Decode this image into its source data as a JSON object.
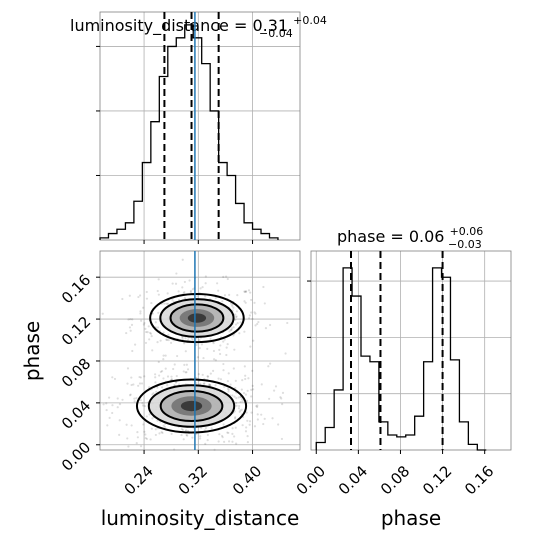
{
  "chart_data": {
    "type": "corner",
    "parameters": [
      "luminosity_distance",
      "phase"
    ],
    "truth": {
      "luminosity_distance": 0.315
    },
    "panels": [
      {
        "id": "hist-luminosity-distance",
        "type": "histogram",
        "title": "luminosity_distance = 0.31",
        "title_sup": "+0.04",
        "title_sub": "−0.04",
        "xlim": [
          0.175,
          0.47
        ],
        "ylim": [
          0,
          1.06
        ],
        "bin_edges": [
          0.175,
          0.1875,
          0.2,
          0.2125,
          0.225,
          0.2375,
          0.25,
          0.2625,
          0.275,
          0.2875,
          0.3,
          0.3125,
          0.325,
          0.3375,
          0.35,
          0.3625,
          0.375,
          0.3875,
          0.4,
          0.4125,
          0.425,
          0.4375
        ],
        "counts": [
          0.01,
          0.03,
          0.05,
          0.08,
          0.18,
          0.36,
          0.55,
          0.76,
          0.9,
          0.94,
          1.0,
          0.94,
          0.82,
          0.6,
          0.36,
          0.3,
          0.17,
          0.08,
          0.05,
          0.03,
          0.01
        ],
        "quantiles": [
          0.27,
          0.31,
          0.35
        ],
        "xticks": [
          0.24,
          0.32,
          0.4
        ],
        "yticks": [
          0.3,
          0.6,
          0.9
        ],
        "grid": true
      },
      {
        "id": "contour-phase-vs-luminosity-distance",
        "type": "2d-density",
        "xlabel": "luminosity_distance",
        "ylabel": "phase",
        "xlim": [
          0.175,
          0.47
        ],
        "ylim": [
          -0.005,
          0.185
        ],
        "xticks": [
          "0.24",
          "0.32",
          "0.40"
        ],
        "yticks": [
          "0.00",
          "0.04",
          "0.08",
          "0.12",
          "0.16"
        ],
        "xtick_values": [
          0.24,
          0.32,
          0.4
        ],
        "ytick_values": [
          0.0,
          0.04,
          0.08,
          0.12,
          0.16
        ],
        "modes": [
          {
            "x": 0.318,
            "y": 0.121,
            "sx": 0.03,
            "sy": 0.01,
            "weight": 0.43
          },
          {
            "x": 0.31,
            "y": 0.037,
            "sx": 0.035,
            "sy": 0.011,
            "weight": 0.57
          }
        ],
        "grid": true
      },
      {
        "id": "hist-phase",
        "type": "histogram",
        "title": "phase = 0.06",
        "title_sup": "+0.06",
        "title_sub": "−0.03",
        "xlabel": "phase",
        "xlim": [
          -0.005,
          0.185
        ],
        "ylim": [
          0,
          1.06
        ],
        "bin_edges": [
          0.0,
          0.0085,
          0.017,
          0.0255,
          0.034,
          0.0425,
          0.051,
          0.0595,
          0.068,
          0.0765,
          0.085,
          0.0935,
          0.102,
          0.1105,
          0.119,
          0.1275,
          0.136,
          0.1445,
          0.153,
          0.1615
        ],
        "counts": [
          0.04,
          0.12,
          0.32,
          0.97,
          0.82,
          0.5,
          0.47,
          0.15,
          0.08,
          0.07,
          0.08,
          0.18,
          0.47,
          0.97,
          0.92,
          0.48,
          0.15,
          0.03,
          0.0
        ],
        "quantiles": [
          0.033,
          0.061,
          0.12
        ],
        "xticks": [
          "0.00",
          "0.04",
          "0.08",
          "0.12",
          "0.16"
        ],
        "xtick_values": [
          0.0,
          0.04,
          0.08,
          0.12,
          0.16
        ],
        "yticks": [
          0.3,
          0.6,
          0.9
        ],
        "grid": true
      }
    ]
  },
  "colors": {
    "truth_line": "#1f77b4",
    "hist_line": "#000000",
    "grid": "#b0b0b0",
    "frame": "#7f7f7f"
  }
}
